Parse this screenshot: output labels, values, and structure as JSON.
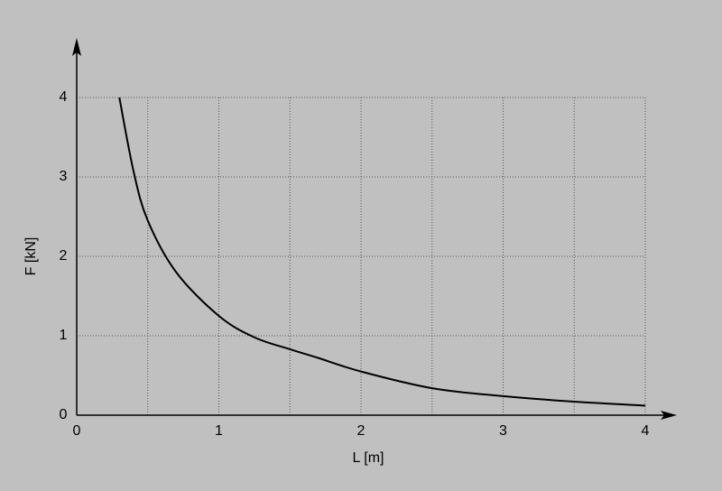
{
  "chart_data": {
    "type": "line",
    "xlabel": "L [m]",
    "ylabel": "F [kN]",
    "xlim": [
      0,
      4
    ],
    "ylim": [
      0,
      4
    ],
    "xticks": [
      0,
      1,
      2,
      3,
      4
    ],
    "yticks": [
      0,
      1,
      2,
      3,
      4
    ],
    "xgrid_minor": [
      0.5,
      1.5,
      2.5,
      3.5
    ],
    "grid": true,
    "series": [
      {
        "color": "#000000",
        "x": [
          0.3,
          0.4,
          0.5,
          0.7,
          1,
          1.25,
          1.5,
          1.7,
          2,
          2.5,
          3,
          3.5,
          4
        ],
        "values": [
          4,
          3.07,
          2.45,
          1.8,
          1.25,
          0.98,
          0.83,
          0.72,
          0.55,
          0.34,
          0.24,
          0.17,
          0.12
        ]
      }
    ]
  }
}
